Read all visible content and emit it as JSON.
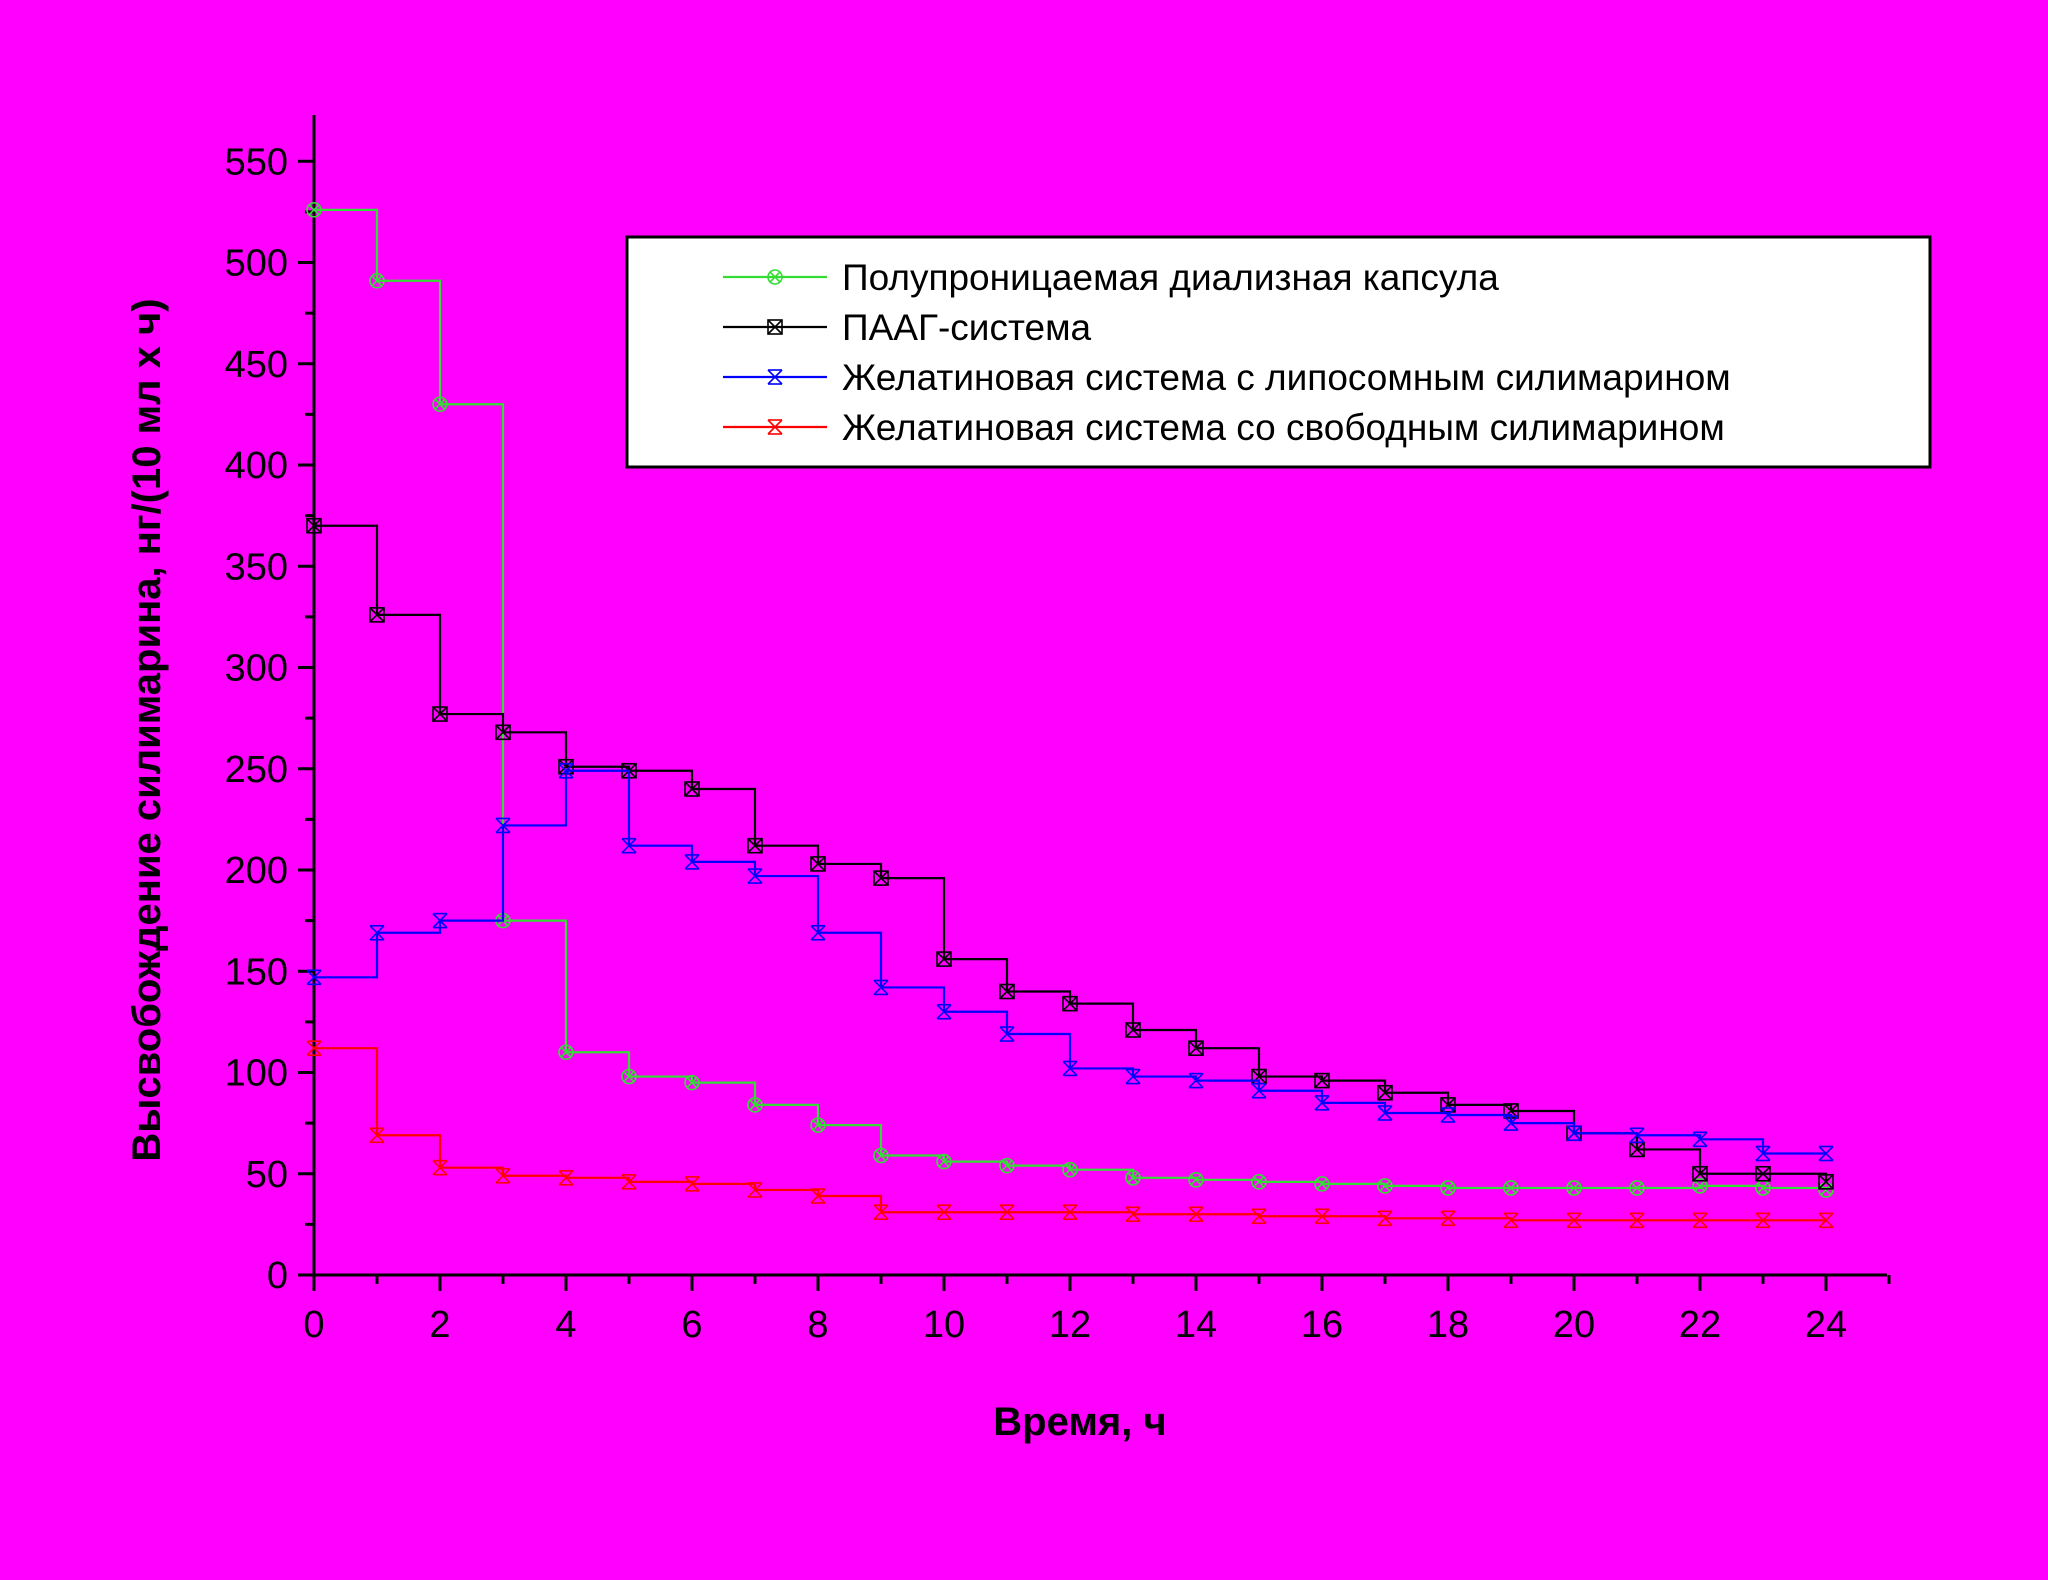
{
  "page": {
    "background": "#ff00ff"
  },
  "chart_data": {
    "type": "line",
    "step": "post",
    "title": "",
    "xlabel": "Время, ч",
    "ylabel": "Высвобождение силимарина, нг/(10 мл х ч)",
    "xlim": [
      0,
      25
    ],
    "ylim": [
      0,
      570
    ],
    "xticks": [
      0,
      2,
      4,
      6,
      8,
      10,
      12,
      14,
      16,
      18,
      20,
      22,
      24
    ],
    "yticks": [
      0,
      50,
      100,
      150,
      200,
      250,
      300,
      350,
      400,
      450,
      500,
      550
    ],
    "grid": false,
    "legend_position": "top-right",
    "x": [
      0,
      1,
      2,
      3,
      4,
      5,
      6,
      7,
      8,
      9,
      10,
      11,
      12,
      13,
      14,
      15,
      16,
      17,
      18,
      19,
      20,
      21,
      22,
      23,
      24
    ],
    "series": [
      {
        "name": "Полупроницаемая диализная капсула",
        "color": "#33dd33",
        "marker": "circle-x",
        "values": [
          526,
          491,
          430,
          175,
          110,
          98,
          95,
          84,
          74,
          59,
          56,
          54,
          52,
          48,
          47,
          46,
          45,
          44,
          43,
          43,
          43,
          43,
          44,
          43,
          42
        ]
      },
      {
        "name": "ПААГ-система",
        "color": "#000000",
        "marker": "square-x",
        "values": [
          370,
          326,
          277,
          268,
          251,
          249,
          240,
          212,
          203,
          196,
          156,
          140,
          134,
          121,
          112,
          98,
          96,
          90,
          84,
          81,
          70,
          62,
          50,
          50,
          46
        ]
      },
      {
        "name": "Желатиновая система с липосомным силимарином",
        "color": "#0000ff",
        "marker": "x-bar",
        "values": [
          147,
          169,
          175,
          222,
          249,
          212,
          204,
          197,
          169,
          142,
          130,
          119,
          102,
          98,
          96,
          91,
          85,
          80,
          79,
          75,
          70,
          69,
          67,
          60,
          60
        ]
      },
      {
        "name": "Желатиновая система со свободным силимарином",
        "color": "#ff0000",
        "marker": "x-bar",
        "values": [
          112,
          69,
          53,
          49,
          48,
          46,
          45,
          42,
          39,
          31,
          31,
          31,
          31,
          30,
          30,
          29,
          29,
          28,
          28,
          27,
          27,
          27,
          27,
          27,
          27
        ]
      }
    ]
  }
}
